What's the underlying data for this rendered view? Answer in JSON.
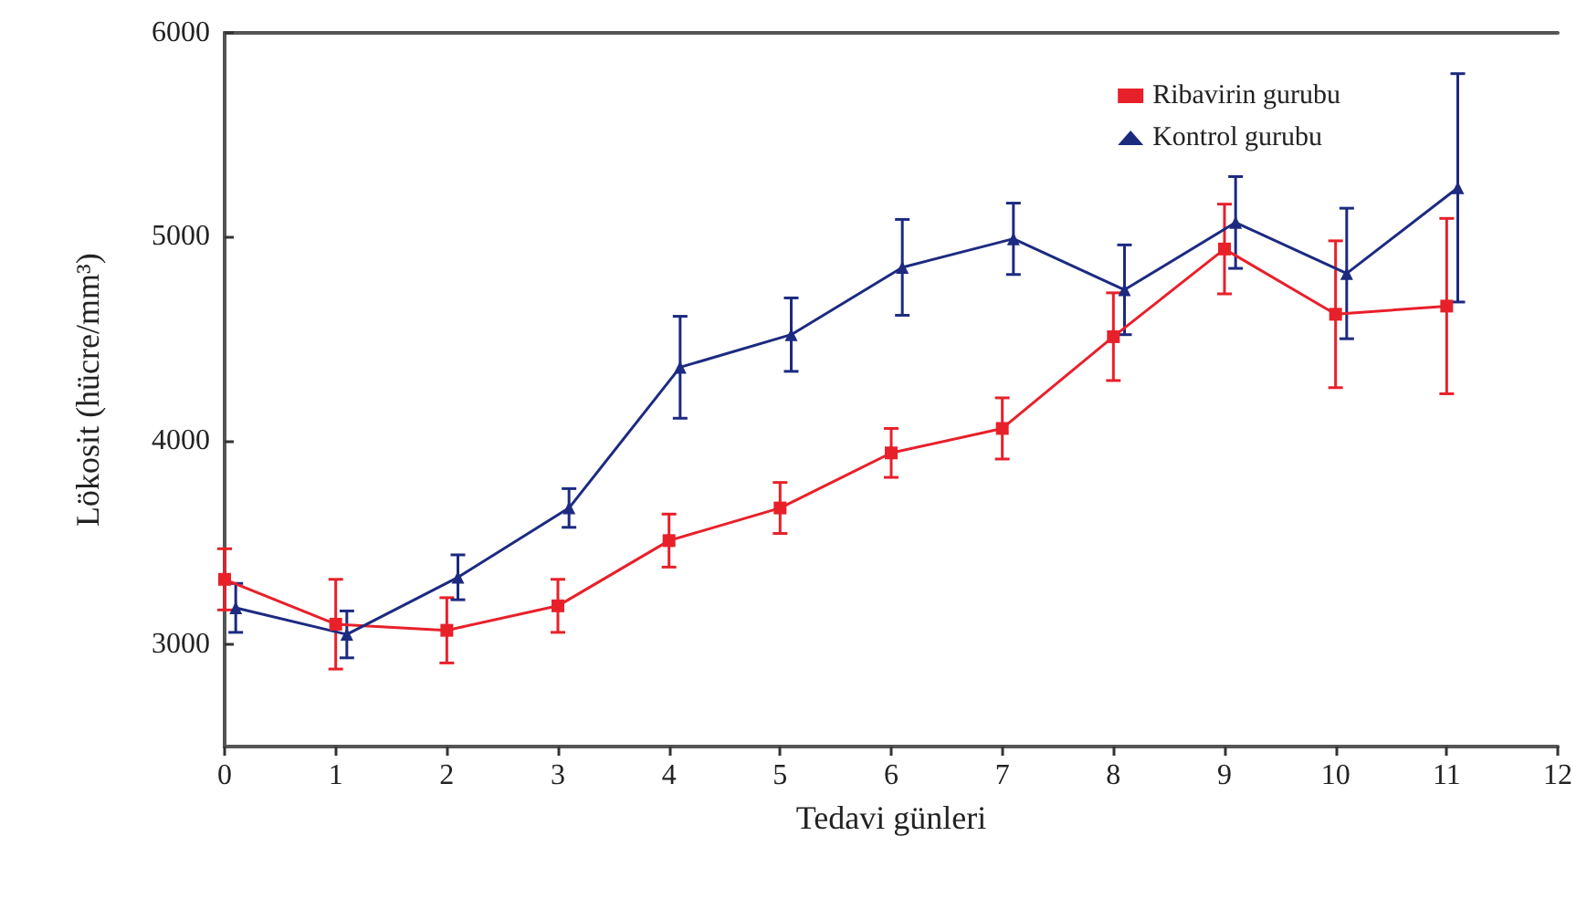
{
  "chart_data": {
    "type": "line",
    "xlabel": "Tedavi günleri",
    "ylabel": "Lökosit (hücre/mm³)",
    "xlim": [
      0,
      12
    ],
    "xticks": [
      0,
      1,
      2,
      3,
      4,
      5,
      6,
      7,
      8,
      9,
      10,
      11,
      12
    ],
    "ylim": [
      2500,
      6000
    ],
    "yticks": [
      3000,
      4000,
      5000,
      6000
    ],
    "grid": false,
    "legend": "top right",
    "line_style": "solid",
    "series": [
      {
        "name": "Ribavirin gurubu",
        "color": "#e8202a",
        "marker": "square",
        "x": [
          0,
          1,
          2,
          3,
          4,
          5,
          6,
          7,
          8,
          9,
          10,
          11
        ],
        "values": [
          3320,
          3100,
          3070,
          3190,
          3510,
          3670,
          3940,
          4060,
          4510,
          4940,
          4620,
          4660
        ],
        "errors": [
          150,
          220,
          160,
          130,
          130,
          125,
          120,
          150,
          215,
          220,
          360,
          430
        ]
      },
      {
        "name": "Kontrol gurubu",
        "color": "#1c2a80",
        "marker": "triangle",
        "x": [
          0.1,
          1.1,
          2.1,
          3.1,
          4.1,
          5.1,
          6.1,
          7.1,
          8.1,
          9.1,
          10.1,
          11.1
        ],
        "values": [
          3180,
          3050,
          3330,
          3670,
          4360,
          4520,
          4850,
          4990,
          4740,
          5070,
          4820,
          5240
        ],
        "errors": [
          120,
          115,
          110,
          95,
          250,
          180,
          235,
          175,
          220,
          225,
          320,
          560
        ]
      }
    ]
  }
}
